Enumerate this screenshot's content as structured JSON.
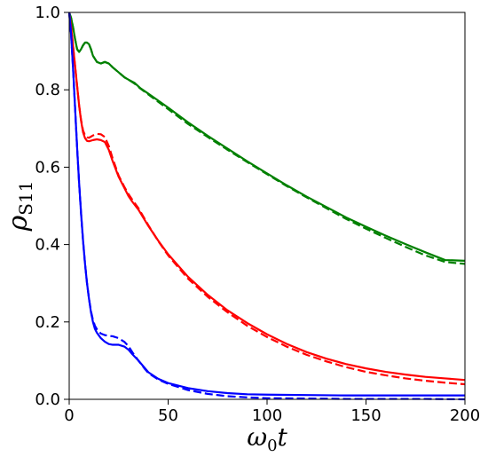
{
  "chart_data": {
    "type": "line",
    "title": "",
    "xlabel": {
      "main": "ω",
      "sub": "0",
      "tail": "t"
    },
    "ylabel": {
      "main": "ρ",
      "sub": "S11"
    },
    "xlim": [
      0,
      200
    ],
    "ylim": [
      0.0,
      1.0
    ],
    "xticks": [
      0,
      50,
      100,
      150,
      200
    ],
    "yticks": [
      0.0,
      0.2,
      0.4,
      0.6,
      0.8,
      1.0
    ],
    "xtick_labels": [
      "0",
      "50",
      "100",
      "150",
      "200"
    ],
    "ytick_labels": [
      "0.0",
      "0.2",
      "0.4",
      "0.6",
      "0.8",
      "1.0"
    ],
    "grid": false,
    "legend": "none",
    "series": [
      {
        "color": "#008000",
        "style": "solid",
        "x": [
          0,
          1,
          2,
          3,
          4,
          5,
          6,
          7,
          8,
          9,
          10,
          11,
          12,
          14,
          16,
          18,
          20,
          22,
          25,
          28,
          30,
          33,
          36,
          40,
          45,
          50,
          60,
          70,
          80,
          90,
          100,
          110,
          120,
          130,
          140,
          150,
          160,
          170,
          180,
          190,
          200
        ],
        "y": [
          1.0,
          0.985,
          0.96,
          0.93,
          0.905,
          0.898,
          0.905,
          0.915,
          0.922,
          0.922,
          0.918,
          0.905,
          0.888,
          0.872,
          0.868,
          0.872,
          0.868,
          0.858,
          0.845,
          0.832,
          0.826,
          0.818,
          0.804,
          0.79,
          0.772,
          0.754,
          0.716,
          0.681,
          0.648,
          0.615,
          0.584,
          0.553,
          0.524,
          0.497,
          0.47,
          0.446,
          0.423,
          0.401,
          0.38,
          0.36,
          0.358
        ]
      },
      {
        "color": "#008000",
        "style": "dashed",
        "x": [
          0,
          1,
          2,
          3,
          4,
          5,
          6,
          7,
          8,
          9,
          10,
          11,
          12,
          14,
          16,
          18,
          20,
          22,
          25,
          28,
          30,
          33,
          36,
          40,
          45,
          50,
          60,
          70,
          80,
          90,
          100,
          110,
          120,
          130,
          140,
          150,
          160,
          170,
          180,
          190,
          200
        ],
        "y": [
          1.0,
          0.985,
          0.96,
          0.93,
          0.905,
          0.898,
          0.905,
          0.915,
          0.922,
          0.922,
          0.918,
          0.905,
          0.888,
          0.872,
          0.868,
          0.872,
          0.868,
          0.858,
          0.845,
          0.832,
          0.826,
          0.816,
          0.803,
          0.788,
          0.769,
          0.75,
          0.712,
          0.678,
          0.645,
          0.613,
          0.582,
          0.551,
          0.522,
          0.494,
          0.466,
          0.441,
          0.417,
          0.394,
          0.372,
          0.355,
          0.35
        ]
      },
      {
        "color": "#ff0000",
        "style": "solid",
        "x": [
          0,
          1,
          2,
          3,
          4,
          5,
          6,
          7,
          8,
          9,
          10,
          12,
          14,
          16,
          18,
          20,
          22,
          25,
          28,
          30,
          32,
          35,
          40,
          45,
          50,
          60,
          70,
          80,
          90,
          100,
          110,
          120,
          130,
          140,
          150,
          160,
          170,
          180,
          190,
          200
        ],
        "y": [
          1.0,
          0.96,
          0.91,
          0.86,
          0.81,
          0.76,
          0.72,
          0.69,
          0.675,
          0.668,
          0.667,
          0.67,
          0.672,
          0.67,
          0.665,
          0.645,
          0.615,
          0.575,
          0.545,
          0.525,
          0.51,
          0.49,
          0.448,
          0.41,
          0.375,
          0.317,
          0.27,
          0.23,
          0.197,
          0.168,
          0.143,
          0.122,
          0.105,
          0.091,
          0.08,
          0.071,
          0.064,
          0.058,
          0.054,
          0.05
        ]
      },
      {
        "color": "#ff0000",
        "style": "dashed",
        "x": [
          0,
          1,
          2,
          3,
          4,
          5,
          6,
          7,
          8,
          9,
          10,
          12,
          14,
          16,
          18,
          20,
          22,
          25,
          28,
          30,
          32,
          35,
          40,
          45,
          50,
          60,
          70,
          80,
          90,
          100,
          110,
          120,
          130,
          140,
          150,
          160,
          170,
          180,
          190,
          200
        ],
        "y": [
          1.0,
          0.96,
          0.91,
          0.86,
          0.81,
          0.76,
          0.722,
          0.695,
          0.682,
          0.677,
          0.676,
          0.682,
          0.686,
          0.685,
          0.678,
          0.655,
          0.622,
          0.578,
          0.548,
          0.53,
          0.515,
          0.494,
          0.45,
          0.409,
          0.372,
          0.312,
          0.265,
          0.225,
          0.19,
          0.161,
          0.136,
          0.115,
          0.098,
          0.083,
          0.071,
          0.062,
          0.054,
          0.048,
          0.043,
          0.039
        ]
      },
      {
        "color": "#0000ff",
        "style": "solid",
        "x": [
          0,
          1,
          2,
          3,
          4,
          5,
          6,
          7,
          8,
          9,
          10,
          11,
          12,
          13,
          14,
          15,
          16,
          18,
          20,
          22,
          25,
          28,
          30,
          32,
          35,
          38,
          40,
          45,
          50,
          60,
          70,
          80,
          90,
          100,
          120,
          140,
          160,
          180,
          200
        ],
        "y": [
          1.0,
          0.94,
          0.85,
          0.75,
          0.65,
          0.56,
          0.48,
          0.41,
          0.35,
          0.3,
          0.26,
          0.225,
          0.2,
          0.182,
          0.172,
          0.165,
          0.158,
          0.149,
          0.143,
          0.141,
          0.141,
          0.136,
          0.128,
          0.116,
          0.1,
          0.082,
          0.07,
          0.053,
          0.042,
          0.029,
          0.021,
          0.016,
          0.013,
          0.012,
          0.011,
          0.01,
          0.01,
          0.01,
          0.01
        ]
      },
      {
        "color": "#0000ff",
        "style": "dashed",
        "x": [
          0,
          1,
          2,
          3,
          4,
          5,
          6,
          7,
          8,
          9,
          10,
          11,
          12,
          13,
          14,
          15,
          16,
          18,
          20,
          22,
          25,
          28,
          30,
          32,
          35,
          38,
          40,
          45,
          50,
          60,
          70,
          80,
          90,
          100,
          120,
          140,
          160,
          180,
          200
        ],
        "y": [
          1.0,
          0.94,
          0.85,
          0.75,
          0.65,
          0.56,
          0.48,
          0.41,
          0.35,
          0.3,
          0.26,
          0.228,
          0.205,
          0.19,
          0.181,
          0.175,
          0.17,
          0.166,
          0.164,
          0.163,
          0.158,
          0.148,
          0.137,
          0.121,
          0.1,
          0.08,
          0.068,
          0.051,
          0.04,
          0.024,
          0.014,
          0.008,
          0.005,
          0.003,
          0.002,
          0.001,
          0.001,
          0.001,
          0.0
        ]
      }
    ]
  }
}
